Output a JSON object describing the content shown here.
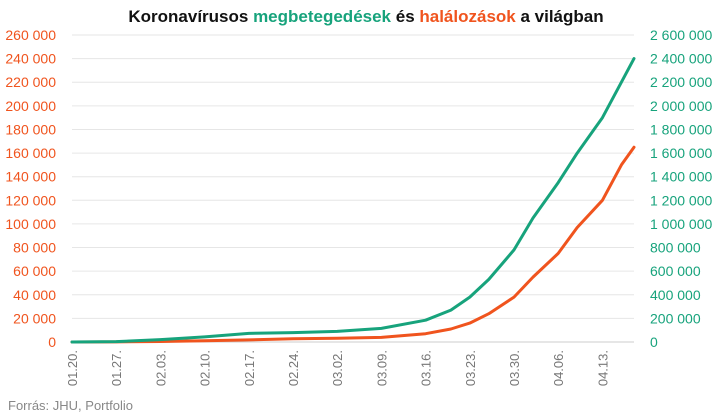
{
  "chart_data": {
    "type": "line",
    "title_parts": [
      {
        "text": "Koronavírusos ",
        "role": "plain"
      },
      {
        "text": "megbetegedések",
        "role": "cases"
      },
      {
        "text": " és ",
        "role": "plain"
      },
      {
        "text": "halálozások",
        "role": "deaths"
      },
      {
        "text": " a világban",
        "role": "plain"
      }
    ],
    "colors": {
      "cases": "#17a37c",
      "deaths": "#f0541e",
      "text": "#111111",
      "axis_text": "#777777",
      "source": "#888888"
    },
    "x_ticks": [
      "01.20.",
      "01.27.",
      "02.03.",
      "02.10.",
      "02.17.",
      "02.24.",
      "03.02.",
      "03.09.",
      "03.16.",
      "03.23.",
      "03.30.",
      "04.06.",
      "04.13."
    ],
    "y_left": {
      "ticks": [
        "0",
        "20 000",
        "40 000",
        "60 000",
        "80 000",
        "100 000",
        "120 000",
        "140 000",
        "160 000",
        "180 000",
        "200 000",
        "220 000",
        "240 000",
        "260 000"
      ],
      "range": [
        0,
        260000
      ]
    },
    "y_right": {
      "ticks": [
        "0",
        "200 000",
        "400 000",
        "600 000",
        "800 000",
        "1 000 000",
        "1 200 000",
        "1 400 000",
        "1 600 000",
        "1 800 000",
        "2 000 000",
        "2 200 000",
        "2 400 000",
        "2 600 000"
      ],
      "range": [
        0,
        2600000
      ]
    },
    "series": [
      {
        "role": "deaths",
        "axis": "left",
        "x": [
          "01.20.",
          "01.27.",
          "02.03.",
          "02.10.",
          "02.17.",
          "02.24.",
          "03.02.",
          "03.09.",
          "03.16.",
          "03.20.",
          "03.23.",
          "03.26.",
          "03.30.",
          "04.02.",
          "04.06.",
          "04.09.",
          "04.13.",
          "04.16.",
          "04.18."
        ],
        "values": [
          0,
          100,
          400,
          1000,
          1800,
          2700,
          3100,
          3900,
          7000,
          11000,
          16000,
          24000,
          38000,
          55000,
          75000,
          97000,
          120000,
          150000,
          165000
        ]
      },
      {
        "role": "cases",
        "axis": "right",
        "x": [
          "01.20.",
          "01.27.",
          "02.03.",
          "02.10.",
          "02.17.",
          "02.24.",
          "03.02.",
          "03.09.",
          "03.16.",
          "03.20.",
          "03.23.",
          "03.26.",
          "03.30.",
          "04.02.",
          "04.06.",
          "04.09.",
          "04.13.",
          "04.16.",
          "04.18."
        ],
        "values": [
          0,
          3000,
          20000,
          43000,
          73000,
          80000,
          90000,
          115000,
          185000,
          270000,
          380000,
          530000,
          780000,
          1050000,
          1350000,
          1600000,
          1900000,
          2200000,
          2400000
        ]
      }
    ],
    "grid": true,
    "source": "Forrás: JHU, Portfolio"
  }
}
